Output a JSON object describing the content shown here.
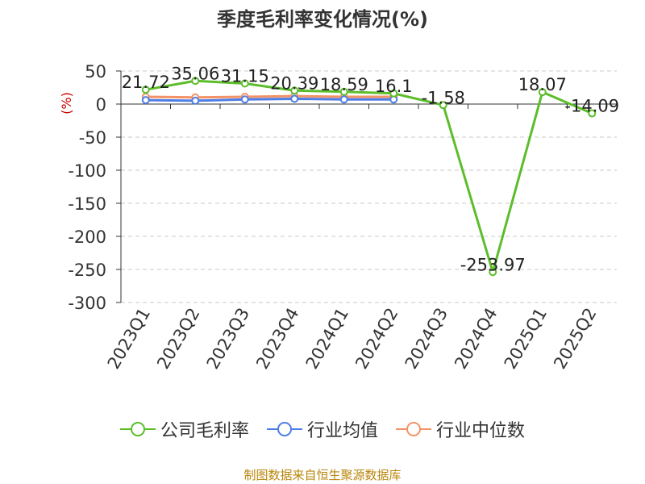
{
  "chart_data": {
    "type": "line",
    "title": "季度毛利率变化情况(%)",
    "ylabel": "(%)",
    "categories": [
      "2023Q1",
      "2023Q2",
      "2023Q3",
      "2023Q4",
      "2024Q1",
      "2024Q2",
      "2024Q3",
      "2024Q4",
      "2025Q1",
      "2025Q2"
    ],
    "ylim": [
      -300,
      50
    ],
    "yticks": [
      50,
      0,
      -50,
      -100,
      -150,
      -200,
      -250,
      -300
    ],
    "grid": true,
    "legend_position": "bottom",
    "series": [
      {
        "name": "公司毛利率",
        "color": "#5cbd2b",
        "values": [
          21.72,
          35.06,
          31.15,
          20.39,
          18.59,
          16.1,
          -1.58,
          -253.97,
          18.07,
          -14.09
        ],
        "labels": [
          "21.72",
          "35.06",
          "31.15",
          "20.39",
          "18.59",
          "16.1",
          "-1.58",
          "-253.97",
          "18.07",
          "-14.09"
        ]
      },
      {
        "name": "行业均值",
        "color": "#4d7de6",
        "values": [
          6,
          5,
          7,
          8,
          7,
          7,
          null,
          null,
          null,
          null
        ]
      },
      {
        "name": "行业中位数",
        "color": "#f39266",
        "values": [
          11,
          10,
          11,
          12,
          11,
          11,
          null,
          null,
          null,
          null
        ]
      }
    ]
  },
  "source": "制图数据来自恒生聚源数据库"
}
